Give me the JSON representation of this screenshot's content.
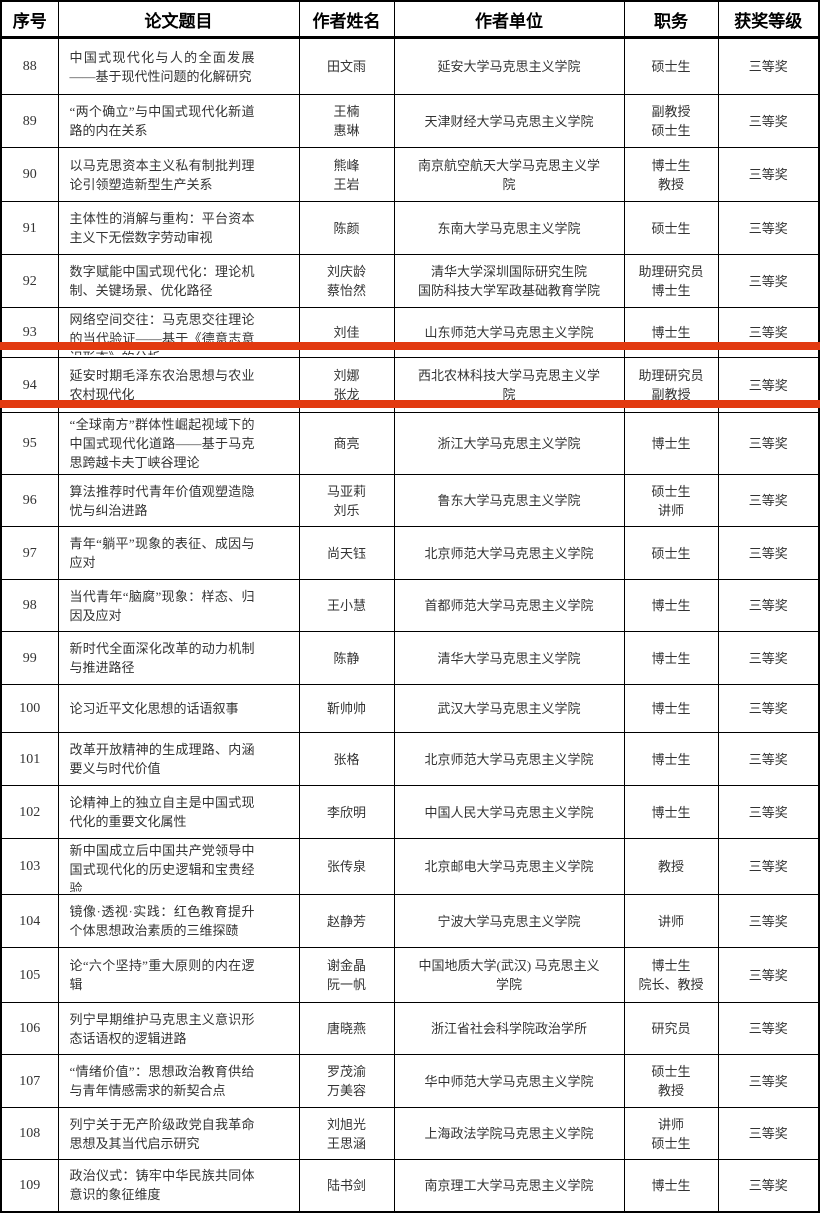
{
  "table": {
    "headers": [
      "序号",
      "论文题目",
      "作者姓名",
      "作者单位",
      "职务",
      "获奖等级"
    ],
    "rows": [
      {
        "no": "88",
        "title": "中国式现代化与人的全面发展——基于现代性问题的化解研究",
        "authors": "田文雨",
        "unit": "延安大学马克思主义学院",
        "position": "硕士生",
        "award": "三等奖"
      },
      {
        "no": "89",
        "title": "“两个确立”与中国式现代化新道路的内在关系",
        "authors": "王楠\n惠琳",
        "unit": "天津财经大学马克思主义学院",
        "position": "副教授\n硕士生",
        "award": "三等奖"
      },
      {
        "no": "90",
        "title": "以马克思资本主义私有制批判理论引领塑造新型生产关系",
        "authors": "熊峰\n王岩",
        "unit": "南京航空航天大学马克思主义学院",
        "position": "博士生\n教授",
        "award": "三等奖"
      },
      {
        "no": "91",
        "title": "主体性的消解与重构：平台资本主义下无偿数字劳动审视",
        "authors": "陈颜",
        "unit": "东南大学马克思主义学院",
        "position": "硕士生",
        "award": "三等奖"
      },
      {
        "no": "92",
        "title": "数字赋能中国式现代化：理论机制、关键场景、优化路径",
        "authors": "刘庆龄\n蔡怡然",
        "unit": "清华大学深圳国际研究生院\n国防科技大学军政基础教育学院",
        "position": "助理研究员\n博士生",
        "award": "三等奖"
      },
      {
        "no": "93",
        "title": "网络空间交往：马克思交往理论的当代验证——基于《德意志意识形态》的分析",
        "authors": "刘佳",
        "unit": "山东师范大学马克思主义学院",
        "position": "博士生",
        "award": "三等奖"
      },
      {
        "no": "94",
        "title": "延安时期毛泽东农治思想与农业农村现代化",
        "authors": "刘娜\n张龙",
        "unit": "西北农林科技大学马克思主义学院",
        "position": "助理研究员\n副教授",
        "award": "三等奖"
      },
      {
        "no": "95",
        "title": "“全球南方”群体性崛起视域下的中国式现代化道路——基于马克思跨越卡夫丁峡谷理论",
        "authors": "商亮",
        "unit": "浙江大学马克思主义学院",
        "position": "博士生",
        "award": "三等奖"
      },
      {
        "no": "96",
        "title": "算法推荐时代青年价值观塑造隐忧与纠治进路",
        "authors": "马亚莉\n刘乐",
        "unit": "鲁东大学马克思主义学院",
        "position": "硕士生\n讲师",
        "award": "三等奖"
      },
      {
        "no": "97",
        "title": "青年“躺平”现象的表征、成因与应对",
        "authors": "尚天钰",
        "unit": "北京师范大学马克思主义学院",
        "position": "硕士生",
        "award": "三等奖"
      },
      {
        "no": "98",
        "title": "当代青年“脑腐”现象：样态、归因及应对",
        "authors": "王小慧",
        "unit": "首都师范大学马克思主义学院",
        "position": "博士生",
        "award": "三等奖"
      },
      {
        "no": "99",
        "title": "新时代全面深化改革的动力机制与推进路径",
        "authors": "陈静",
        "unit": "清华大学马克思主义学院",
        "position": "博士生",
        "award": "三等奖"
      },
      {
        "no": "100",
        "title": "论习近平文化思想的话语叙事",
        "authors": "靳帅帅",
        "unit": "武汉大学马克思主义学院",
        "position": "博士生",
        "award": "三等奖"
      },
      {
        "no": "101",
        "title": "改革开放精神的生成理路、内涵要义与时代价值",
        "authors": "张格",
        "unit": "北京师范大学马克思主义学院",
        "position": "博士生",
        "award": "三等奖"
      },
      {
        "no": "102",
        "title": "论精神上的独立自主是中国式现代化的重要文化属性",
        "authors": "李欣明",
        "unit": "中国人民大学马克思主义学院",
        "position": "博士生",
        "award": "三等奖"
      },
      {
        "no": "103",
        "title": "新中国成立后中国共产党领导中国式现代化的历史逻辑和宝贵经验",
        "authors": "张传泉",
        "unit": "北京邮电大学马克思主义学院",
        "position": "教授",
        "award": "三等奖"
      },
      {
        "no": "104",
        "title": "镜像·透视·实践：红色教育提升个体思想政治素质的三维探赜",
        "authors": "赵静芳",
        "unit": "宁波大学马克思主义学院",
        "position": "讲师",
        "award": "三等奖"
      },
      {
        "no": "105",
        "title": "论“六个坚持”重大原则的内在逻辑",
        "authors": "谢金晶\n阮一帆",
        "unit": "中国地质大学(武汉) 马克思主义学院",
        "position": "博士生\n院长、教授",
        "award": "三等奖"
      },
      {
        "no": "106",
        "title": "列宁早期维护马克思主义意识形态话语权的逻辑进路",
        "authors": "唐晓燕",
        "unit": "浙江省社会科学院政治学所",
        "position": "研究员",
        "award": "三等奖"
      },
      {
        "no": "107",
        "title": "“情绪价值”：思想政治教育供给与青年情感需求的新契合点",
        "authors": "罗茂渝\n万美容",
        "unit": "华中师范大学马克思主义学院",
        "position": "硕士生\n教授",
        "award": "三等奖"
      },
      {
        "no": "108",
        "title": "列宁关于无产阶级政党自我革命思想及其当代启示研究",
        "authors": "刘旭光\n王思涵",
        "unit": "上海政法学院马克思主义学院",
        "position": "讲师\n硕士生",
        "award": "三等奖"
      },
      {
        "no": "109",
        "title": "政治仪式：铸牢中华民族共同体意识的象征维度",
        "authors": "陆书剑",
        "unit": "南京理工大学马克思主义学院",
        "position": "博士生",
        "award": "三等奖"
      }
    ]
  },
  "highlight": {
    "color": "#e23a10",
    "highlighted_row_no": "94"
  }
}
